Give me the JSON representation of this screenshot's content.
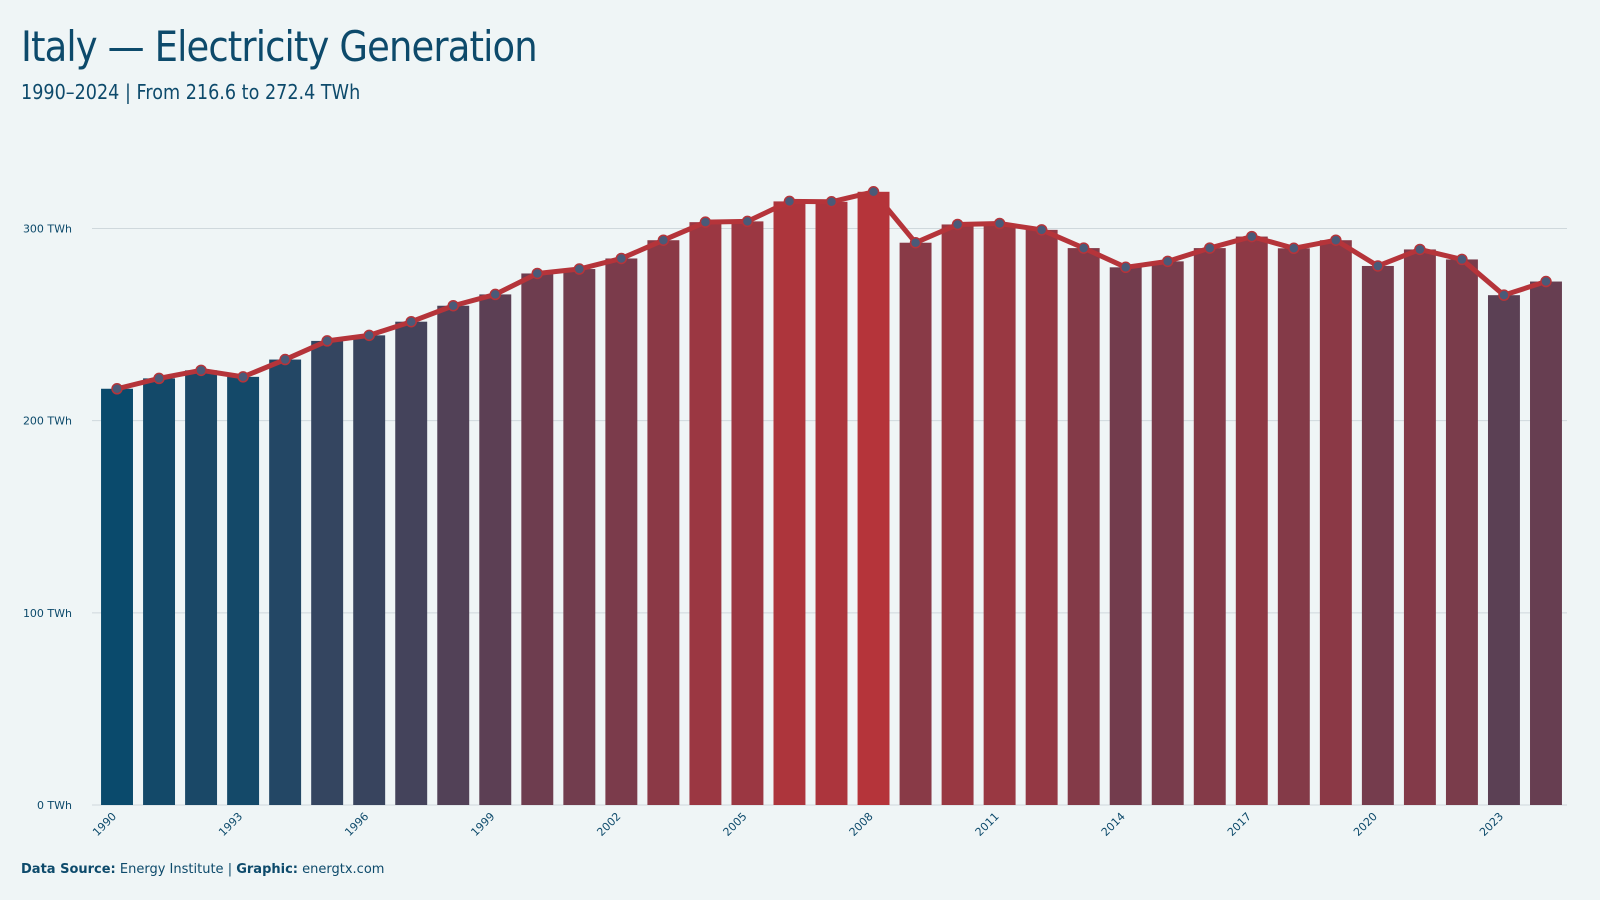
{
  "header": {
    "title": "Italy — Electricity Generation",
    "subtitle": "1990–2024 | From 216.6 to 272.4 TWh"
  },
  "footer": {
    "source_label": "Data Source:",
    "source_value": "Energy Institute",
    "separator": "|",
    "graphic_label": "Graphic:",
    "graphic_value": "energtx.com"
  },
  "colors": {
    "low": "#0a4a6c",
    "high": "#b5343a",
    "line": "#b5343a",
    "marker_fill": "#4a5a78",
    "grid": "#cfd8dc",
    "text": "#0d4a6b"
  },
  "chart_data": {
    "type": "bar",
    "title": "Italy — Electricity Generation",
    "unit": "TWh",
    "ylim": [
      0,
      320
    ],
    "yticks": [
      0,
      100,
      200,
      300
    ],
    "ytick_labels": [
      "0 TWh",
      "100 TWh",
      "200 TWh",
      "300 TWh"
    ],
    "xtick_labels": [
      "1990",
      "1993",
      "1996",
      "1999",
      "2002",
      "2005",
      "2008",
      "2011",
      "2014",
      "2017",
      "2020",
      "2023"
    ],
    "grid": true,
    "categories": [
      "1990",
      "1991",
      "1992",
      "1993",
      "1994",
      "1995",
      "1996",
      "1997",
      "1998",
      "1999",
      "2000",
      "2001",
      "2002",
      "2003",
      "2004",
      "2005",
      "2006",
      "2007",
      "2008",
      "2009",
      "2010",
      "2011",
      "2012",
      "2013",
      "2014",
      "2015",
      "2016",
      "2017",
      "2018",
      "2019",
      "2020",
      "2021",
      "2022",
      "2023",
      "2024"
    ],
    "values": [
      216.6,
      222.0,
      226.2,
      222.8,
      231.8,
      241.5,
      244.4,
      251.5,
      259.8,
      265.7,
      276.6,
      278.9,
      284.4,
      293.9,
      303.3,
      303.7,
      314.1,
      313.9,
      319.1,
      292.6,
      302.1,
      302.6,
      299.3,
      289.8,
      279.8,
      282.9,
      289.8,
      295.8,
      289.7,
      293.9,
      280.5,
      289.1,
      283.9,
      265.3,
      272.4
    ]
  }
}
